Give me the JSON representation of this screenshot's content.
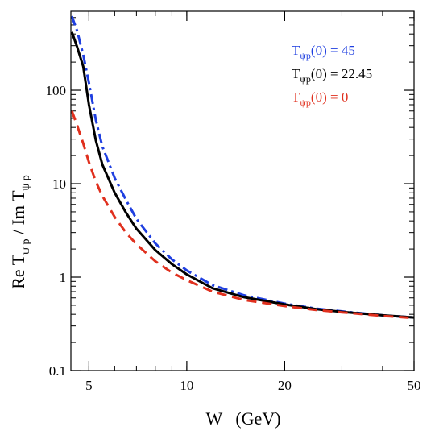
{
  "chart_data": {
    "type": "line",
    "xlabel": "W   (GeV)",
    "ylabel": "Re Tψ p  / Im Tψ p",
    "xscale": "log",
    "yscale": "log",
    "xlim": [
      4.4,
      50
    ],
    "ylim": [
      0.1,
      700
    ],
    "grid": false,
    "legend_position": "top-right",
    "x_ticks": [
      {
        "value": 5,
        "label": "5"
      },
      {
        "value": 10,
        "label": "10"
      },
      {
        "value": 20,
        "label": "20"
      },
      {
        "value": 50,
        "label": "50"
      }
    ],
    "y_ticks": [
      {
        "value": 0.1,
        "label": "0.1"
      },
      {
        "value": 1,
        "label": "1"
      },
      {
        "value": 10,
        "label": "10"
      },
      {
        "value": 100,
        "label": "100"
      }
    ],
    "series": [
      {
        "name": "Tψp(0) = 45",
        "legend_main": "T",
        "legend_sub": "ψp",
        "legend_rest": "(0) = 45",
        "color": "#1f3fe0",
        "dash": "dashdot",
        "x": [
          4.43,
          4.6,
          4.8,
          5.0,
          5.25,
          5.5,
          6.0,
          6.5,
          7.0,
          8.0,
          9.0,
          10.0,
          12.0,
          15.0,
          20.0,
          25.0,
          30.0,
          40.0,
          50.0
        ],
        "y": [
          620,
          430,
          240,
          120,
          48,
          25,
          11.5,
          6.7,
          4.2,
          2.3,
          1.55,
          1.18,
          0.82,
          0.64,
          0.52,
          0.46,
          0.43,
          0.39,
          0.37
        ]
      },
      {
        "name": "Tψp(0) = 22.45",
        "legend_main": "T",
        "legend_sub": "ψp",
        "legend_rest": "(0) = 22.45",
        "color": "#000000",
        "dash": "solid",
        "x": [
          4.43,
          4.6,
          4.8,
          5.0,
          5.25,
          5.5,
          6.0,
          6.5,
          7.0,
          8.0,
          9.0,
          10.0,
          12.0,
          15.0,
          20.0,
          25.0,
          30.0,
          40.0,
          50.0
        ],
        "y": [
          420,
          290,
          180,
          70,
          29,
          16,
          8.0,
          4.9,
          3.3,
          1.95,
          1.38,
          1.07,
          0.76,
          0.61,
          0.51,
          0.455,
          0.425,
          0.39,
          0.37
        ]
      },
      {
        "name": "Tψp(0) = 0",
        "legend_main": "T",
        "legend_sub": "ψp",
        "legend_rest": "(0) = 0",
        "color": "#e0301e",
        "dash": "dashed",
        "x": [
          4.43,
          4.6,
          4.8,
          5.0,
          5.25,
          5.5,
          6.0,
          6.5,
          7.0,
          8.0,
          9.0,
          10.0,
          12.0,
          15.0,
          20.0,
          25.0,
          30.0,
          40.0,
          50.0
        ],
        "y": [
          60,
          42,
          27,
          17,
          10.5,
          7.4,
          4.4,
          3.0,
          2.25,
          1.48,
          1.12,
          0.93,
          0.7,
          0.57,
          0.49,
          0.445,
          0.42,
          0.385,
          0.365
        ]
      }
    ]
  }
}
